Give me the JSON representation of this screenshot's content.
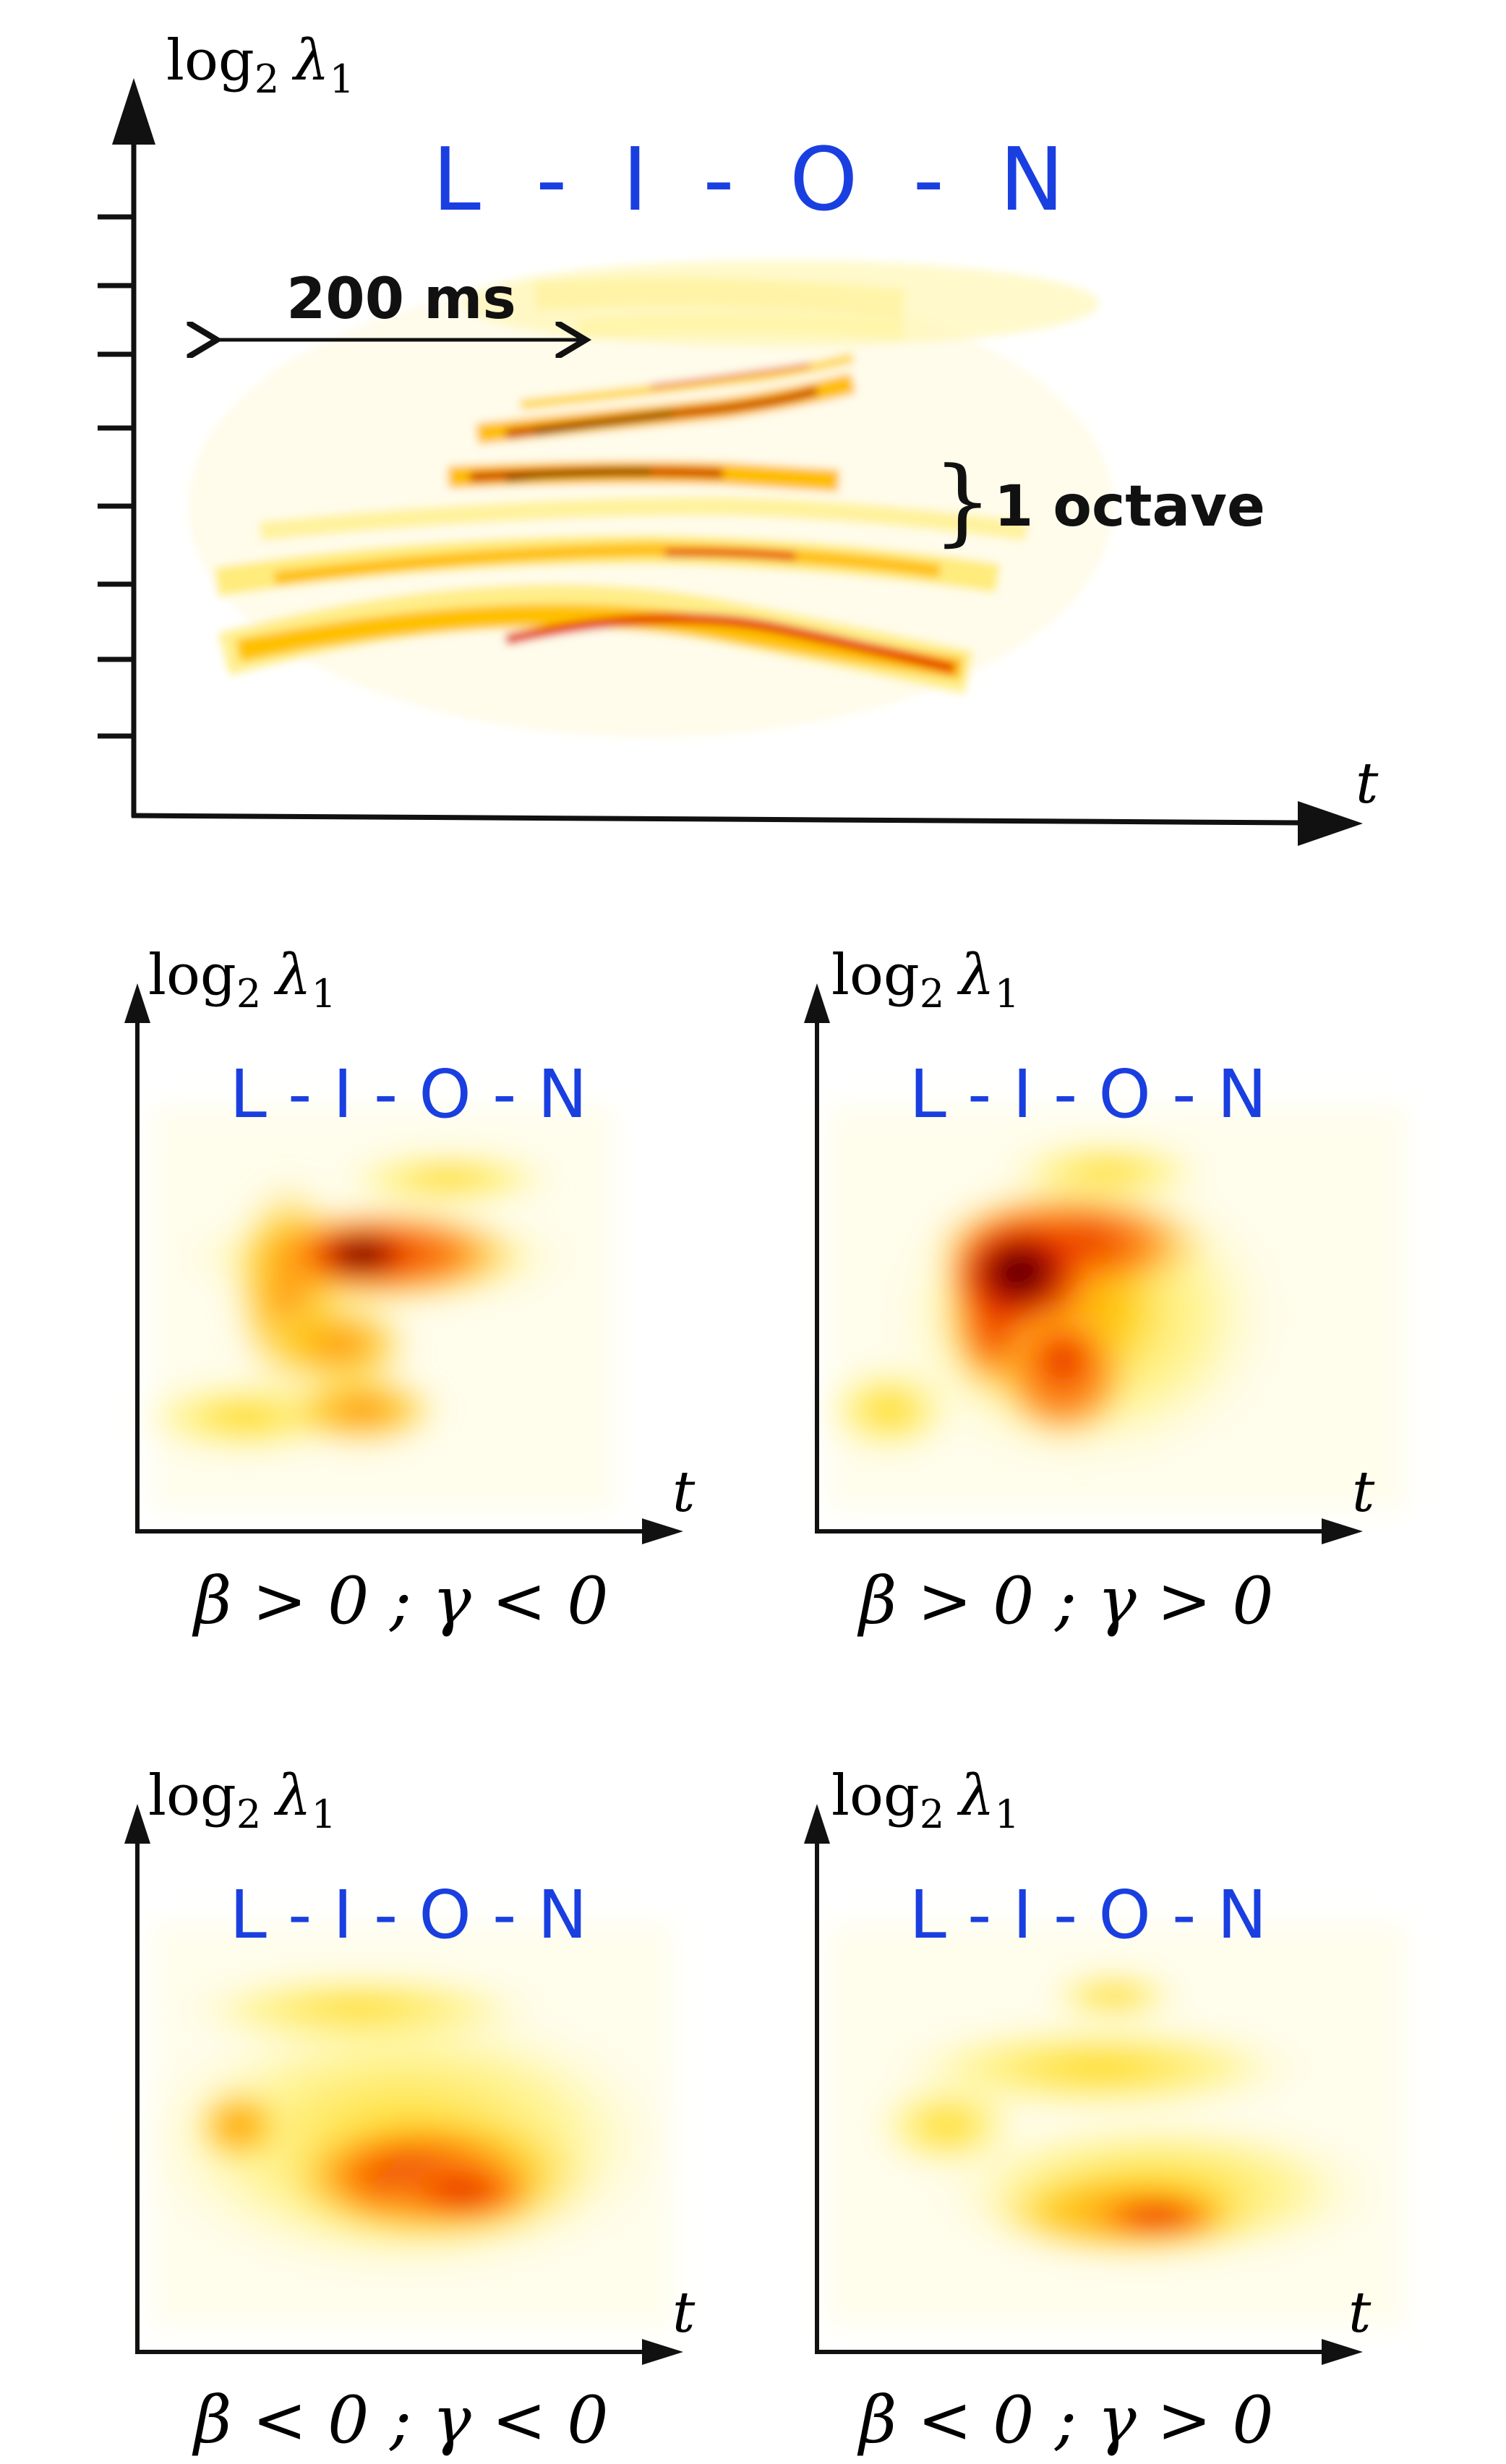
{
  "colors": {
    "word": "#1a3fe0",
    "axis": "#111111",
    "heat_low": "#fff7b0",
    "heat_mid": "#ffd400",
    "heat_high": "#e62200",
    "heat_peak": "#3a0000"
  },
  "main": {
    "y_axis_label": {
      "base": "log",
      "sub": "2",
      "symbol": "λ",
      "symbol_sub": "1"
    },
    "x_axis_label": "t",
    "word": "L  -  I  -  O  -  N",
    "duration_label": "200 ms",
    "octave_label": "1 octave",
    "octave_brace": "}"
  },
  "small_panels": [
    {
      "y_axis_label": {
        "base": "log",
        "sub": "2",
        "symbol": "λ",
        "symbol_sub": "1"
      },
      "x_axis_label": "t",
      "word": "L - I - O - N",
      "caption": "β > 0 ; γ < 0"
    },
    {
      "y_axis_label": {
        "base": "log",
        "sub": "2",
        "symbol": "λ",
        "symbol_sub": "1"
      },
      "x_axis_label": "t",
      "word": "L - I - O - N",
      "caption": "β > 0 ; γ > 0"
    },
    {
      "y_axis_label": {
        "base": "log",
        "sub": "2",
        "symbol": "λ",
        "symbol_sub": "1"
      },
      "x_axis_label": "t",
      "word": "L - I - O - N",
      "caption": "β < 0 ; γ < 0"
    },
    {
      "y_axis_label": {
        "base": "log",
        "sub": "2",
        "symbol": "λ",
        "symbol_sub": "1"
      },
      "x_axis_label": "t",
      "word": "L - I - O - N",
      "caption": "β < 0 ; γ > 0"
    }
  ]
}
